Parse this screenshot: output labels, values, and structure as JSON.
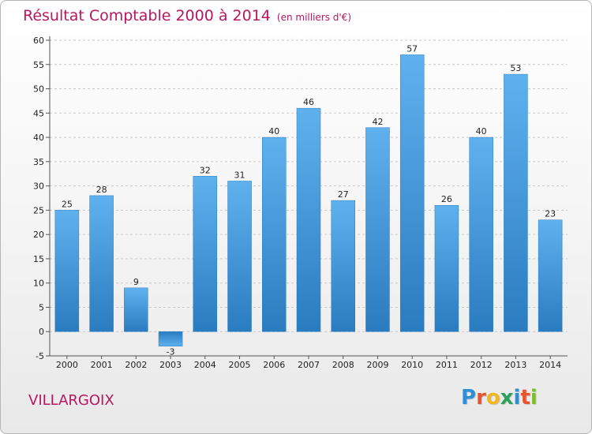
{
  "header": {
    "title": "Résultat Comptable 2000 à 2014",
    "unit": "(en milliers d'€)"
  },
  "footer": {
    "place": "VILLARGOIX",
    "logo_letters": [
      "P",
      "r",
      "o",
      "x",
      "i",
      "t",
      "i"
    ],
    "logo_colors": [
      "#2e8fd6",
      "#e8542f",
      "#f2b51e",
      "#2aa25b",
      "#2e8fd6",
      "#e8542f",
      "#7bbd2c"
    ]
  },
  "chart_data": {
    "type": "bar",
    "title": "Résultat Comptable 2000 à 2014",
    "ylabel": "en milliers d'€",
    "categories": [
      "2000",
      "2001",
      "2002",
      "2003",
      "2004",
      "2005",
      "2006",
      "2007",
      "2008",
      "2009",
      "2010",
      "2011",
      "2012",
      "2013",
      "2014"
    ],
    "values": [
      25,
      28,
      9,
      -3,
      32,
      31,
      40,
      46,
      27,
      42,
      57,
      26,
      40,
      53,
      23
    ],
    "ylim": [
      -5,
      60
    ],
    "yticks": [
      -5,
      0,
      5,
      10,
      15,
      20,
      25,
      30,
      35,
      40,
      45,
      50,
      55,
      60
    ],
    "grid": true,
    "bar_color": "#3d92d6",
    "title_color": "#b5185f"
  }
}
